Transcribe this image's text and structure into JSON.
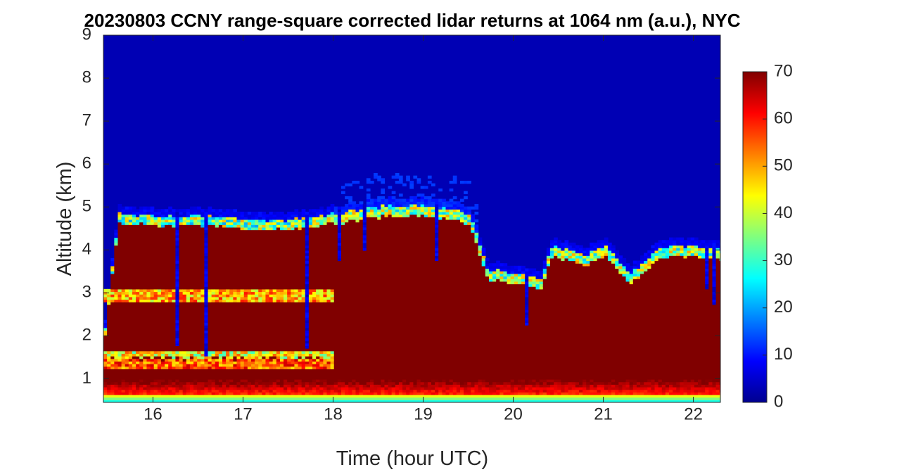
{
  "chart_data": {
    "type": "heatmap",
    "title": "20230803 CCNY range-square corrected lidar returns at 1064 nm (a.u.), NYC",
    "xlabel": "Time (hour UTC)",
    "ylabel": "Altitude (km)",
    "xlim": [
      15.45,
      22.3
    ],
    "ylim": [
      0.45,
      9
    ],
    "x_ticks": [
      16,
      17,
      18,
      19,
      20,
      21,
      22
    ],
    "y_ticks": [
      1,
      2,
      3,
      4,
      5,
      6,
      7,
      8,
      9
    ],
    "colorbar": {
      "colormap": "jet",
      "range": [
        0,
        70
      ],
      "ticks": [
        0,
        10,
        20,
        30,
        40,
        50,
        60,
        70
      ]
    },
    "layers": {
      "aerosol_layer_top_km": [
        {
          "t": 15.45,
          "z": 2.1
        },
        {
          "t": 15.6,
          "z": 4.7
        },
        {
          "t": 16.0,
          "z": 4.65
        },
        {
          "t": 16.5,
          "z": 4.65
        },
        {
          "t": 17.0,
          "z": 4.55
        },
        {
          "t": 17.5,
          "z": 4.55
        },
        {
          "t": 18.0,
          "z": 4.7
        },
        {
          "t": 18.5,
          "z": 4.85
        },
        {
          "t": 19.0,
          "z": 4.9
        },
        {
          "t": 19.5,
          "z": 4.7
        },
        {
          "t": 19.7,
          "z": 3.4
        },
        {
          "t": 20.0,
          "z": 3.3
        },
        {
          "t": 20.3,
          "z": 3.2
        },
        {
          "t": 20.4,
          "z": 3.95
        },
        {
          "t": 20.8,
          "z": 3.75
        },
        {
          "t": 21.0,
          "z": 3.95
        },
        {
          "t": 21.3,
          "z": 3.3
        },
        {
          "t": 21.6,
          "z": 3.95
        },
        {
          "t": 22.0,
          "z": 3.95
        },
        {
          "t": 22.3,
          "z": 3.85
        }
      ],
      "cloud_band_km": [
        2.8,
        3.0
      ],
      "boundary_layer_top_km": 1.4,
      "surface_layer_km": [
        0.45,
        0.95
      ]
    }
  }
}
